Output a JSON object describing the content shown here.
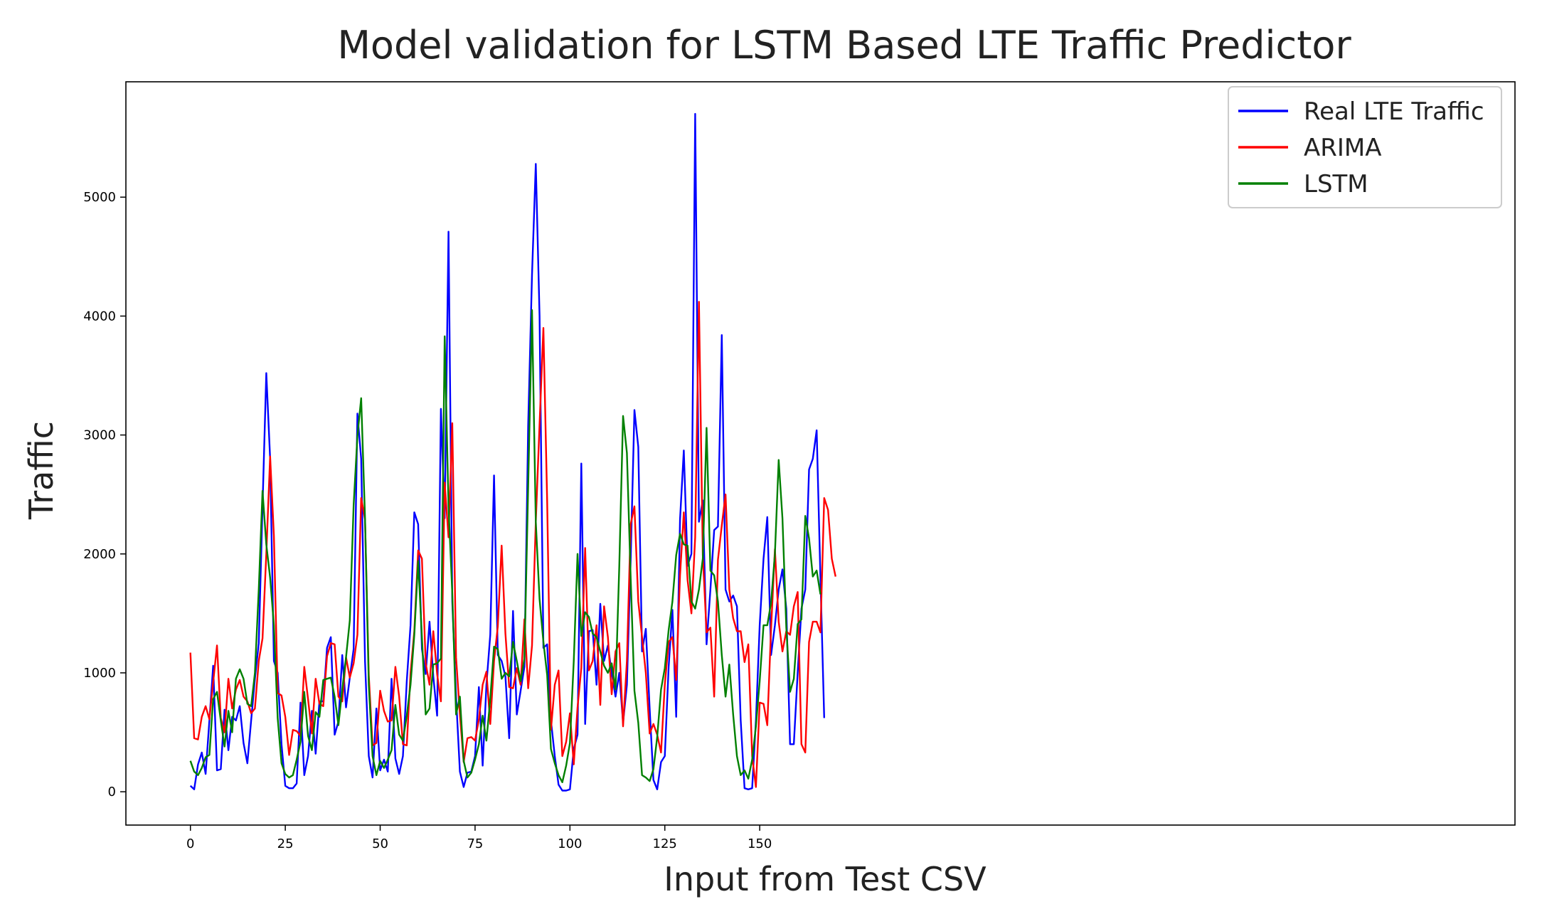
{
  "chart_data": {
    "type": "line",
    "title": "Model validation for LSTM Based LTE Traffic Predictor",
    "xlabel": "Input from Test CSV",
    "ylabel": "Traffic",
    "xlim": [
      -17,
      349
    ],
    "ylim": [
      -280,
      5970
    ],
    "x_ticks": [
      0,
      25,
      50,
      75,
      100,
      125,
      150
    ],
    "y_ticks": [
      0,
      1000,
      2000,
      3000,
      4000,
      5000
    ],
    "grid": false,
    "legend_position": "top-right",
    "series": [
      {
        "name": "Real LTE Traffic",
        "color": "#0000ff",
        "values": [
          50,
          20,
          230,
          330,
          150,
          600,
          1060,
          180,
          190,
          690,
          350,
          630,
          600,
          720,
          410,
          240,
          600,
          950,
          1250,
          2400,
          3520,
          2800,
          1100,
          1000,
          400,
          50,
          30,
          30,
          70,
          750,
          140,
          300,
          680,
          320,
          760,
          760,
          1210,
          1300,
          480,
          590,
          1150,
          710,
          960,
          1200,
          3180,
          2800,
          1100,
          300,
          120,
          700,
          180,
          270,
          170,
          950,
          280,
          150,
          300,
          930,
          1400,
          2350,
          2250,
          1200,
          990,
          1430,
          970,
          640,
          3220,
          2300,
          4710,
          1600,
          800,
          170,
          40,
          160,
          170,
          300,
          880,
          220,
          900,
          1320,
          2660,
          1150,
          1100,
          970,
          450,
          1520,
          650,
          850,
          1050,
          3080,
          4350,
          5280,
          4000,
          1210,
          1240,
          600,
          300,
          60,
          10,
          10,
          20,
          360,
          480,
          2760,
          570,
          1350,
          1360,
          900,
          1580,
          1100,
          1230,
          1000,
          800,
          1000,
          580,
          900,
          1950,
          3210,
          2900,
          1180,
          1370,
          700,
          100,
          20,
          250,
          300,
          1050,
          1530,
          630,
          2290,
          2870,
          1900,
          2000,
          5700,
          2270,
          2450,
          1240,
          1700,
          2200,
          2230,
          3840,
          1700,
          1600,
          1650,
          1560,
          600,
          30,
          20,
          30,
          600,
          1400,
          1960,
          2310,
          1150,
          1400,
          1700,
          1870,
          1540,
          400,
          400,
          1000,
          1540,
          1700,
          2710,
          2800,
          3040,
          1800,
          620
        ]
      },
      {
        "name": "ARIMA",
        "color": "#ff0000",
        "values": [
          1170,
          450,
          440,
          630,
          720,
          610,
          920,
          1230,
          620,
          500,
          950,
          700,
          860,
          940,
          800,
          760,
          660,
          700,
          1100,
          1290,
          2000,
          2820,
          2150,
          830,
          810,
          630,
          310,
          520,
          510,
          470,
          1050,
          780,
          490,
          950,
          740,
          720,
          1140,
          1250,
          1240,
          800,
          760,
          1130,
          960,
          1080,
          1320,
          2470,
          2290,
          980,
          390,
          410,
          850,
          680,
          590,
          600,
          1050,
          800,
          400,
          390,
          1000,
          1350,
          2030,
          1960,
          1080,
          900,
          1350,
          990,
          760,
          2600,
          2140,
          3100,
          1130,
          650,
          250,
          450,
          460,
          430,
          610,
          900,
          1010,
          570,
          1100,
          1390,
          2070,
          1330,
          880,
          870,
          1040,
          900,
          1450,
          870,
          1230,
          2270,
          3090,
          3900,
          2440,
          520,
          900,
          1020,
          300,
          420,
          660,
          230,
          710,
          1040,
          2050,
          1020,
          1100,
          1400,
          730,
          1560,
          1300,
          820,
          1180,
          1250,
          550,
          1100,
          2250,
          2400,
          1600,
          1300,
          1000,
          490,
          570,
          480,
          330,
          900,
          1260,
          1300,
          940,
          1820,
          2350,
          1780,
          1500,
          2140,
          4120,
          1990,
          1340,
          1380,
          800,
          1950,
          2240,
          2500,
          1700,
          1460,
          1350,
          1350,
          1090,
          1240,
          300,
          40,
          750,
          740,
          560,
          1370,
          2040,
          1430,
          1180,
          1350,
          1320,
          1560,
          1680,
          400,
          330,
          1260,
          1430,
          1430,
          1340,
          2470,
          2370,
          1960,
          1810
        ]
      },
      {
        "name": "LSTM",
        "color": "#008000",
        "values": [
          260,
          170,
          140,
          200,
          290,
          310,
          780,
          840,
          600,
          380,
          680,
          500,
          950,
          1030,
          950,
          740,
          720,
          1000,
          1700,
          2530,
          2080,
          1800,
          1400,
          620,
          240,
          150,
          120,
          140,
          270,
          420,
          840,
          470,
          350,
          670,
          630,
          940,
          950,
          960,
          800,
          560,
          860,
          1130,
          1440,
          2410,
          2990,
          3310,
          2300,
          900,
          300,
          140,
          260,
          200,
          270,
          350,
          730,
          480,
          430,
          640,
          900,
          1320,
          1940,
          1300,
          650,
          700,
          1070,
          1080,
          1120,
          3830,
          2400,
          1670,
          650,
          800,
          260,
          120,
          160,
          270,
          400,
          640,
          430,
          780,
          1220,
          1200,
          950,
          1000,
          970,
          1260,
          1100,
          930,
          1120,
          2570,
          4050,
          2270,
          1620,
          1260,
          980,
          360,
          240,
          140,
          80,
          220,
          410,
          1100,
          2000,
          1310,
          1510,
          1470,
          1330,
          1300,
          1180,
          1060,
          1000,
          1080,
          860,
          1900,
          3160,
          2850,
          1800,
          850,
          580,
          140,
          120,
          90,
          190,
          460,
          860,
          1040,
          1360,
          1600,
          1990,
          2170,
          2080,
          2070,
          1600,
          1540,
          1700,
          1960,
          3060,
          1860,
          1820,
          1600,
          1150,
          800,
          1070,
          650,
          300,
          140,
          180,
          110,
          270,
          550,
          930,
          1400,
          1400,
          1590,
          2000,
          2790,
          2300,
          1380,
          840,
          950,
          1410,
          1450,
          2320,
          2130,
          1810,
          1860,
          1660
        ]
      }
    ]
  }
}
